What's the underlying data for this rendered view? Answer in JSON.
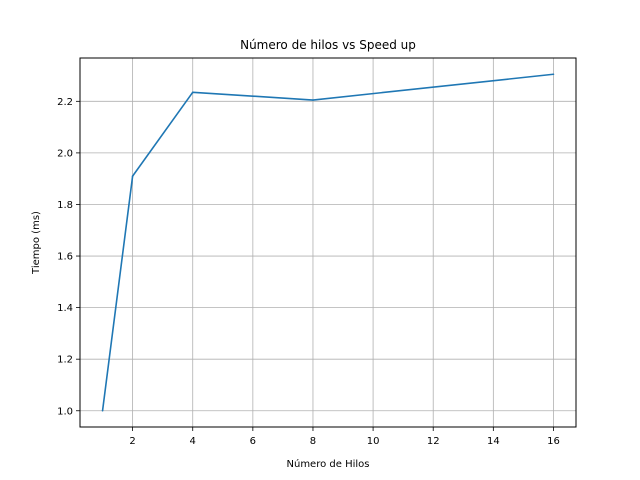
{
  "chart_data": {
    "type": "line",
    "title": "Número de hilos vs Speed up",
    "xlabel": "Número de Hilos",
    "ylabel": "Tiempo (ms)",
    "xlim": [
      0.25,
      16.75
    ],
    "ylim": [
      0.937,
      2.368
    ],
    "xticks": [
      2,
      4,
      6,
      8,
      10,
      12,
      14,
      16
    ],
    "yticks": [
      1.0,
      1.2,
      1.4,
      1.6,
      1.8,
      2.0,
      2.2
    ],
    "grid": true,
    "series": [
      {
        "x": [
          1,
          2,
          4,
          8,
          16
        ],
        "values": [
          1.0,
          1.91,
          2.235,
          2.205,
          2.305
        ],
        "color": "#1f77b4"
      }
    ]
  }
}
